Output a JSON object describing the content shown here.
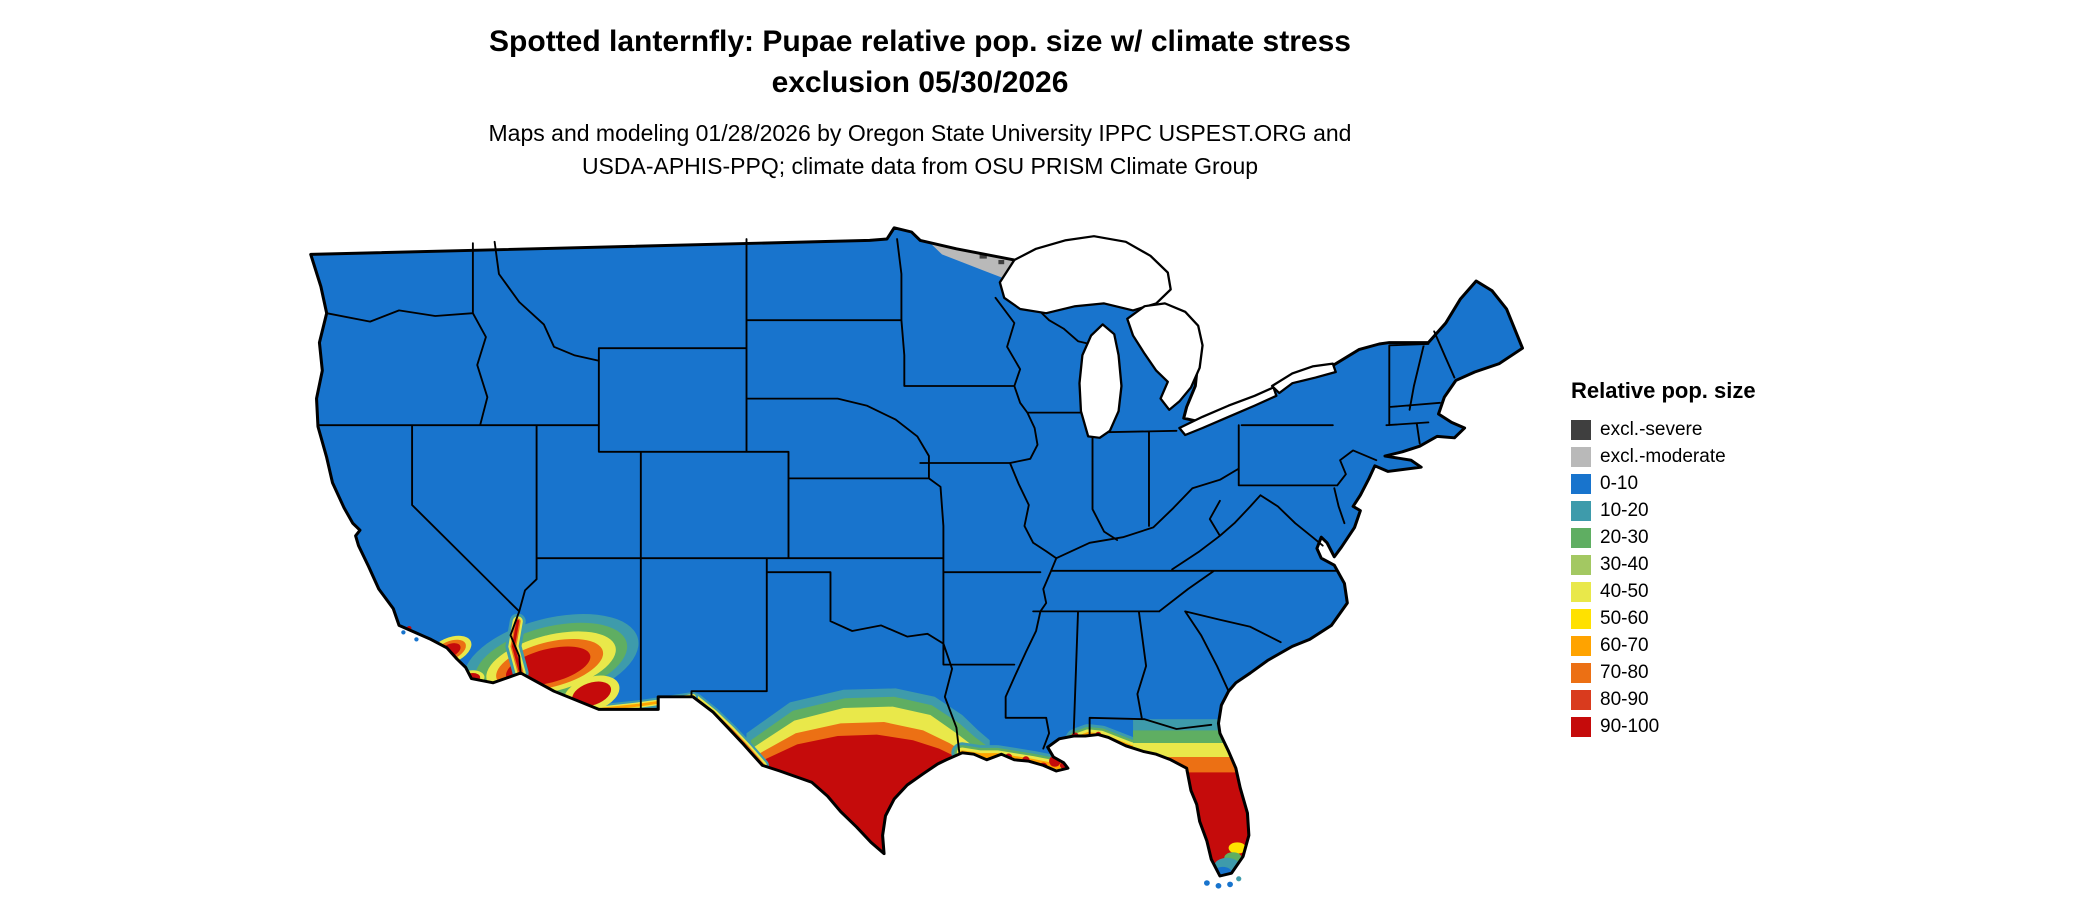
{
  "title": {
    "line1": "Spotted lanternfly: Pupae relative pop. size w/ climate stress",
    "line2": "exclusion 05/30/2026"
  },
  "subtitle": {
    "line1": "Maps and modeling 01/28/2026 by Oregon State University IPPC USPEST.ORG and",
    "line2": "USDA-APHIS-PPQ; climate data from OSU PRISM Climate Group"
  },
  "legend": {
    "title": "Relative pop. size",
    "items": [
      {
        "label": "excl.-severe",
        "color": "#3f3f3f"
      },
      {
        "label": "excl.-moderate",
        "color": "#b9b9b9"
      },
      {
        "label": "0-10",
        "color": "#1874cd"
      },
      {
        "label": "10-20",
        "color": "#3e9bab"
      },
      {
        "label": "20-30",
        "color": "#5fae62"
      },
      {
        "label": "30-40",
        "color": "#a3c862"
      },
      {
        "label": "40-50",
        "color": "#e9e84a"
      },
      {
        "label": "50-60",
        "color": "#ffe100"
      },
      {
        "label": "60-70",
        "color": "#ffa300"
      },
      {
        "label": "70-80",
        "color": "#ec7014"
      },
      {
        "label": "80-90",
        "color": "#d93b1e"
      },
      {
        "label": "90-100",
        "color": "#c50b0b"
      }
    ]
  },
  "map": {
    "region": "Continental United States with state borders and Great Lakes",
    "dominant_class": "0-10",
    "visible_features": [
      "Most of the country shaded blue (0-10)",
      "High relative pop. size (red 90-100) across south Texas, Gulf coastal strip and most of the Florida peninsula",
      "Yellow-orange transition bands across central Texas, the Gulf coast and northern Florida",
      "Red hotspot in southwestern Arizona / lower Colorado River with yellow-green fringe",
      "Small red patches on the southern California coast",
      "Gray excl.-moderate patch with dark excl.-severe specks in northern Minnesota",
      "Blue/teal patches at the southern tip of Florida and the Keys"
    ]
  }
}
